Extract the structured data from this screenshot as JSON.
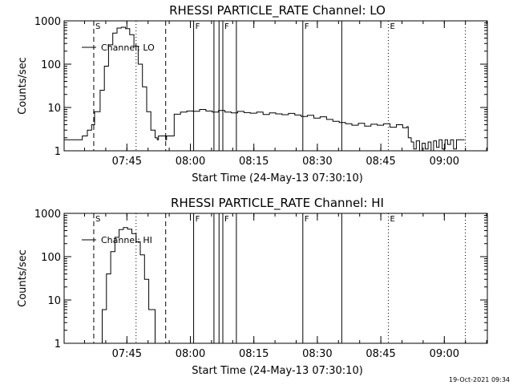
{
  "chart_data": [
    {
      "type": "line",
      "title": "RHESSI PARTICLE_RATE Channel: LO",
      "xlabel": "Start Time (24-May-13 07:30:10)",
      "ylabel": "Counts/sec",
      "legend": "Channel: LO",
      "legend_placement": "top-left",
      "x_unit": "minutes since 07:30:10",
      "xlim": [
        0,
        100
      ],
      "ylim": [
        1,
        1000
      ],
      "yscale": "log",
      "x_ticks": [
        {
          "value": 14.83,
          "label": "07:45"
        },
        {
          "value": 29.83,
          "label": "08:00"
        },
        {
          "value": 44.83,
          "label": "08:15"
        },
        {
          "value": 59.83,
          "label": "08:30"
        },
        {
          "value": 74.83,
          "label": "08:45"
        },
        {
          "value": 89.83,
          "label": "09:00"
        }
      ],
      "y_ticks": [
        {
          "value": 1,
          "label": "1"
        },
        {
          "value": 10,
          "label": "10"
        },
        {
          "value": 100,
          "label": "100"
        },
        {
          "value": 1000,
          "label": "1000"
        }
      ],
      "markers": [
        {
          "x": 7.0,
          "style": "dashed",
          "label": "S"
        },
        {
          "x": 17.0,
          "style": "dotted",
          "label": ""
        },
        {
          "x": 24.0,
          "style": "dashed",
          "label": ""
        },
        {
          "x": 30.6,
          "style": "solid",
          "label": "F"
        },
        {
          "x": 35.4,
          "style": "solid",
          "label": ""
        },
        {
          "x": 36.6,
          "style": "solid",
          "label": ""
        },
        {
          "x": 37.5,
          "style": "solid",
          "label": "F"
        },
        {
          "x": 40.7,
          "style": "solid",
          "label": ""
        },
        {
          "x": 56.4,
          "style": "solid",
          "label": "F"
        },
        {
          "x": 65.6,
          "style": "solid",
          "label": ""
        },
        {
          "x": 76.6,
          "style": "dotted",
          "label": "E"
        },
        {
          "x": 94.8,
          "style": "dotted",
          "label": ""
        }
      ],
      "series": [
        {
          "name": "Channel: LO",
          "x": [
            0,
            4,
            4.3,
            5.5,
            6.5,
            7.2,
            8.5,
            9.5,
            10.5,
            11.5,
            12.5,
            13.5,
            14.5,
            15.5,
            16.5,
            17.5,
            18.5,
            19.5,
            20.5,
            21.5,
            22,
            22.3,
            23.5,
            24,
            24.2,
            25.6,
            26,
            27.5,
            29,
            30.5,
            32,
            33.5,
            35,
            36.5,
            38,
            39.5,
            41,
            42.5,
            44,
            45.5,
            47,
            48.5,
            50,
            51.5,
            53,
            54.5,
            56,
            57.5,
            59,
            60.5,
            62,
            63.5,
            65,
            66.5,
            68,
            69.5,
            71,
            72.5,
            74,
            75.5,
            77,
            78.5,
            80,
            81,
            81.3,
            82,
            82.6,
            83.2,
            84,
            84.6,
            85.3,
            86,
            86.7,
            87.3,
            88,
            88.6,
            89.3,
            90,
            90.6,
            91.3,
            92,
            92.7,
            93.4,
            94.6
          ],
          "y": [
            1.8,
            1.8,
            2.2,
            3,
            4,
            8,
            25,
            90,
            280,
            520,
            680,
            710,
            660,
            480,
            260,
            100,
            30,
            8,
            3,
            2,
            1.8,
            2.2,
            2.2,
            1.8,
            2.2,
            2.2,
            7,
            7.8,
            8.3,
            8.2,
            9,
            8.3,
            7.8,
            8.5,
            7.8,
            7.5,
            8.1,
            7.6,
            7.4,
            7.8,
            6.9,
            7.5,
            7.1,
            6.8,
            7.3,
            6.7,
            6.2,
            6.6,
            5.7,
            6.1,
            5.3,
            4.8,
            4.5,
            4.2,
            3.9,
            4.3,
            3.7,
            4.1,
            3.9,
            4.2,
            3.5,
            4,
            3.4,
            3.6,
            2,
            1.6,
            1.1,
            1.7,
            1,
            1.5,
            1.1,
            1.6,
            1,
            1.7,
            1.2,
            1.8,
            1.1,
            1.8,
            1.4,
            1.8,
            1.1,
            1.8,
            1.8,
            1.8
          ]
        }
      ]
    },
    {
      "type": "line",
      "title": "RHESSI PARTICLE_RATE Channel: HI",
      "xlabel": "Start Time (24-May-13 07:30:10)",
      "ylabel": "Counts/sec",
      "legend": "Channel: HI",
      "legend_placement": "top-left",
      "x_unit": "minutes since 07:30:10",
      "xlim": [
        0,
        100
      ],
      "ylim": [
        1,
        1000
      ],
      "yscale": "log",
      "x_ticks": [
        {
          "value": 14.83,
          "label": "07:45"
        },
        {
          "value": 29.83,
          "label": "08:00"
        },
        {
          "value": 44.83,
          "label": "08:15"
        },
        {
          "value": 59.83,
          "label": "08:30"
        },
        {
          "value": 74.83,
          "label": "08:45"
        },
        {
          "value": 89.83,
          "label": "09:00"
        }
      ],
      "y_ticks": [
        {
          "value": 1,
          "label": "1"
        },
        {
          "value": 10,
          "label": "10"
        },
        {
          "value": 100,
          "label": "100"
        },
        {
          "value": 1000,
          "label": "1000"
        }
      ],
      "markers": [
        {
          "x": 7.0,
          "style": "dashed",
          "label": "S"
        },
        {
          "x": 17.0,
          "style": "dotted",
          "label": ""
        },
        {
          "x": 24.0,
          "style": "dashed",
          "label": ""
        },
        {
          "x": 30.6,
          "style": "solid",
          "label": "F"
        },
        {
          "x": 35.4,
          "style": "solid",
          "label": ""
        },
        {
          "x": 36.6,
          "style": "solid",
          "label": ""
        },
        {
          "x": 37.5,
          "style": "solid",
          "label": "F"
        },
        {
          "x": 40.7,
          "style": "solid",
          "label": ""
        },
        {
          "x": 56.4,
          "style": "solid",
          "label": "F"
        },
        {
          "x": 65.6,
          "style": "solid",
          "label": ""
        },
        {
          "x": 76.6,
          "style": "dotted",
          "label": "E"
        },
        {
          "x": 94.8,
          "style": "dotted",
          "label": ""
        }
      ],
      "series": [
        {
          "name": "Channel: HI",
          "x": [
            8.2,
            9,
            10,
            11,
            12,
            13,
            14,
            15,
            16,
            17,
            18,
            19,
            20,
            21.5
          ],
          "y": [
            1,
            6,
            40,
            130,
            280,
            420,
            470,
            430,
            340,
            220,
            110,
            30,
            6,
            1
          ]
        }
      ]
    }
  ],
  "footer": {
    "timestamp": "19-Oct-2021 09:34"
  }
}
